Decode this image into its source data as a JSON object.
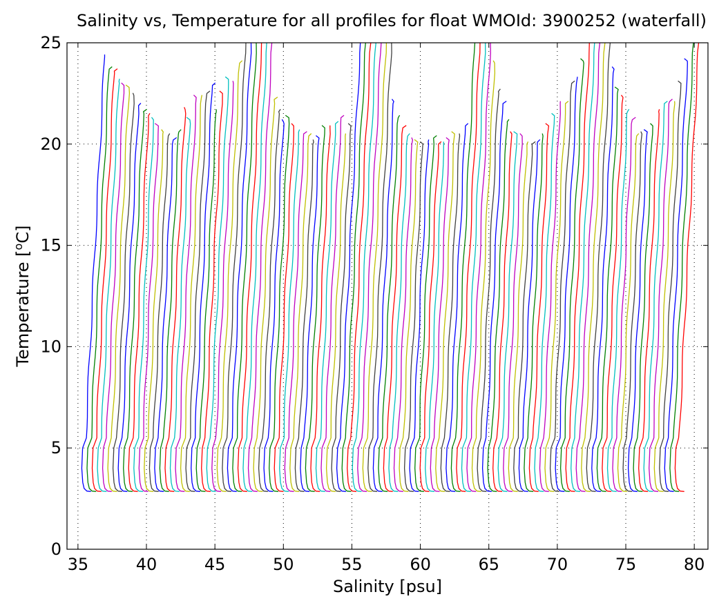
{
  "chart_data": {
    "type": "line",
    "title": "Salinity vs, Temperature for all profiles for float WMOId: 3900252 (waterfall)",
    "xlabel": "Salinity [psu]",
    "ylabel_main": "Temperature [",
    "ylabel_sup": "o",
    "ylabel_end": "C]",
    "xlim": [
      34.2,
      81.0
    ],
    "ylim": [
      0,
      25
    ],
    "xticks": [
      35,
      40,
      45,
      50,
      55,
      60,
      65,
      70,
      75,
      80
    ],
    "yticks": [
      0,
      5,
      10,
      15,
      20,
      25
    ],
    "grid": "dotted",
    "color_cycle": [
      "#0000ff",
      "#008000",
      "#ff0000",
      "#00bfbf",
      "#bf00bf",
      "#bfbf00",
      "#404040"
    ],
    "waterfall": {
      "profile_count": 115,
      "first_bottom_salinity": 35.4,
      "salinity_offset_per_profile": 0.38,
      "bottom_temperature": 2.85,
      "surface_temperatures": [
        24.3,
        23.7,
        23.6,
        23.1,
        22.9,
        22.8,
        22.4,
        21.9,
        21.6,
        21.4,
        21.2,
        20.9,
        20.6,
        20.4,
        20.2,
        20.6,
        21.7,
        21.2,
        22.3,
        22.3,
        22.5,
        22.9,
        21.6,
        22.5,
        23.2,
        23.0,
        24.0,
        25.0,
        25.0,
        25.0,
        25.0,
        25.0,
        25.0,
        22.2,
        21.6,
        21.1,
        21.3,
        20.9,
        20.6,
        20.5,
        20.4,
        20.1,
        20.3,
        20.8,
        20.8,
        21.0,
        21.3,
        20.4,
        20.9,
        25.0,
        25.0,
        25.0,
        25.0,
        25.0,
        25.0,
        25.0,
        22.1,
        21.3,
        20.8,
        20.4,
        20.2,
        20.1,
        20.0,
        20.1,
        20.3,
        20.0,
        20.0,
        20.2,
        20.5,
        20.4,
        20.9,
        25.0,
        25.0,
        25.0,
        25.0,
        24.0,
        22.6,
        22.0,
        21.1,
        20.5,
        20.5,
        20.4,
        20.0,
        20.0,
        20.1,
        20.4,
        20.9,
        21.4,
        22.0,
        22.0,
        23.0,
        23.2,
        24.1,
        25.0,
        25.0,
        25.0,
        25.0,
        25.0,
        23.7,
        22.7,
        22.3,
        21.6,
        21.2,
        20.4,
        20.5,
        20.6,
        20.9,
        21.6,
        22.0,
        22.1,
        22.0,
        23.0,
        24.1,
        25.0,
        25.0
      ]
    }
  }
}
